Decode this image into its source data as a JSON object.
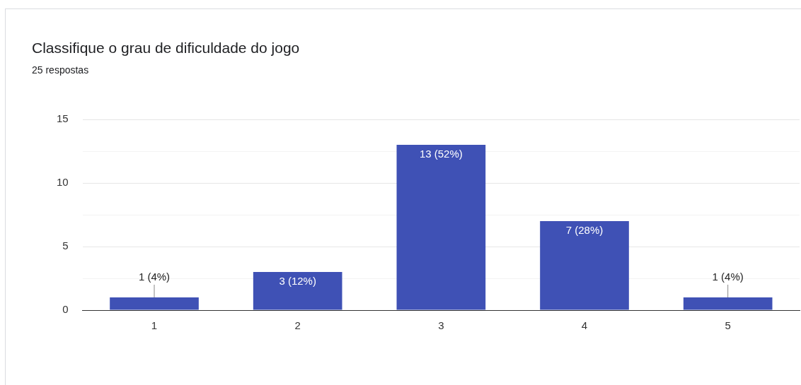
{
  "chart_data": {
    "type": "bar",
    "title": "Classifique o grau de dificuldade do jogo",
    "subtitle": "25 respostas",
    "categories": [
      "1",
      "2",
      "3",
      "4",
      "5"
    ],
    "values": [
      1,
      3,
      13,
      7,
      1
    ],
    "value_labels": [
      "1 (4%)",
      "3 (12%)",
      "13 (52%)",
      "7 (28%)",
      "1 (4%)"
    ],
    "color": "#3f51b5",
    "ylim": [
      0,
      15
    ],
    "yticks": [
      0,
      {
        "value": 2.5,
        "label": null
      },
      5,
      {
        "value": 7.5,
        "label": null
      },
      10,
      {
        "value": 12.5,
        "label": null
      },
      15
    ],
    "grid": "y",
    "legend": false
  }
}
